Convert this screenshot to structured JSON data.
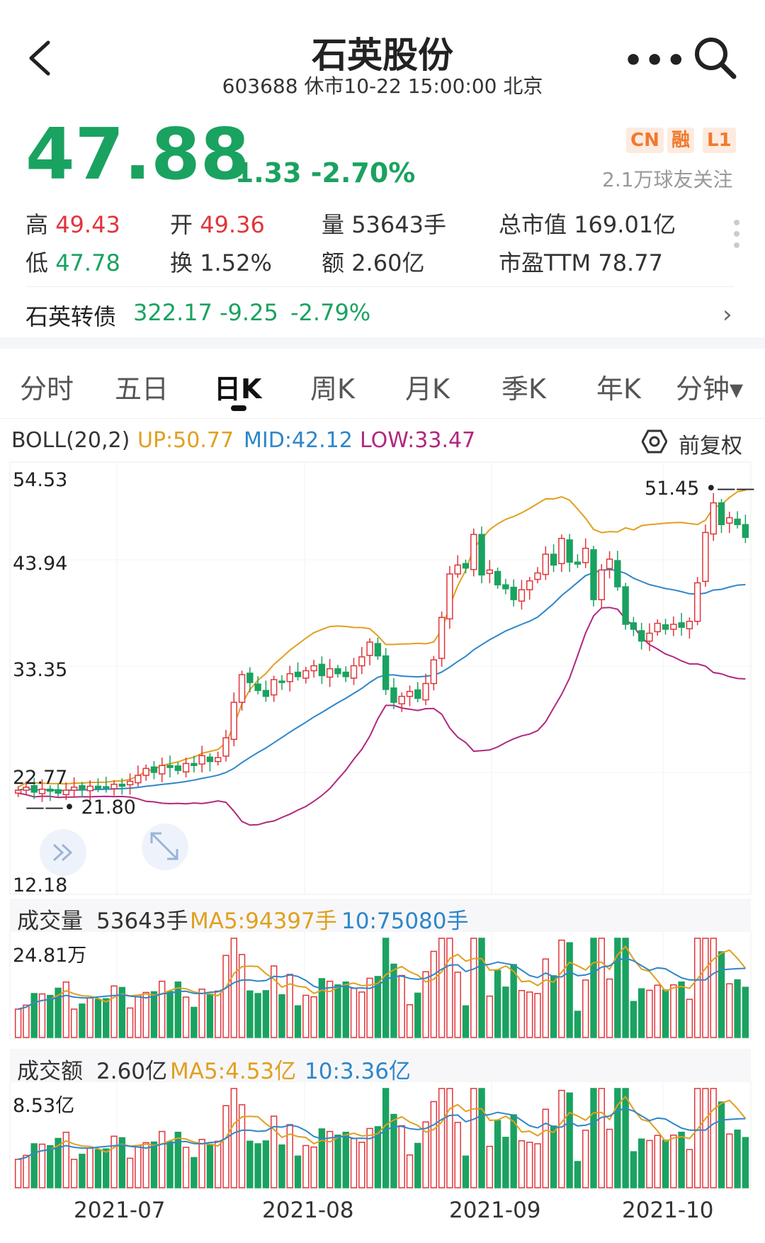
{
  "header": {
    "title": "石英股份",
    "subtitle": "603688 休市10-22 15:00:00 北京",
    "more_label": "•••"
  },
  "quote": {
    "price": "47.88",
    "change": "-1.33 -2.70%",
    "badges": [
      "CN",
      "融",
      "L1"
    ],
    "followers": "2.1万球友关注",
    "stats": {
      "high_label": "高",
      "high": "49.43",
      "low_label": "低",
      "low": "47.78",
      "open_label": "开",
      "open": "49.36",
      "turnover_label": "换",
      "turnover": "1.52%",
      "volume_label": "量",
      "volume": "53643手",
      "amount_label": "额",
      "amount": "2.60亿",
      "mktcap_label": "总市值",
      "mktcap": "169.01亿",
      "pe_label": "市盈TTM",
      "pe": "78.77"
    }
  },
  "bond": {
    "name": "石英转债",
    "price": "322.17",
    "change": "-9.25",
    "pct": "-2.79%"
  },
  "tabs": [
    "分时",
    "五日",
    "日K",
    "周K",
    "月K",
    "季K",
    "年K",
    "分钟▾"
  ],
  "boll": {
    "label": "BOLL(20,2)",
    "up": "UP:50.77",
    "mid": "MID:42.12",
    "low": "LOW:33.47",
    "restore": "前复权"
  },
  "kline_axis": [
    "54.53",
    "43.94",
    "33.35",
    "22.77",
    "12.18"
  ],
  "kline_annotations": {
    "max": "51.45",
    "min": "21.80"
  },
  "volume": {
    "label": "成交量",
    "value": "53643手",
    "ma5": "MA5:94397手",
    "ma10": "10:75080手",
    "axis_max": "24.81万"
  },
  "amount": {
    "label": "成交额",
    "value": "2.60亿",
    "ma5": "MA5:4.53亿",
    "ma10": "10:3.36亿",
    "axis_max": "8.53亿"
  },
  "x_axis": [
    "2021-07",
    "2021-08",
    "2021-09",
    "2021-10"
  ],
  "colors": {
    "up": "#e0353b",
    "down": "#1aa260",
    "boll_up": "#e0a020",
    "boll_mid": "#2f86c9",
    "boll_low": "#b0287f"
  },
  "chart_data": {
    "type": "candlestick",
    "close": [
      22.3,
      22.6,
      22.1,
      22.4,
      22.2,
      22.0,
      22.3,
      22.6,
      22.4,
      22.7,
      22.5,
      22.6,
      22.9,
      22.7,
      23.2,
      23.8,
      24.5,
      24.1,
      24.8,
      24.6,
      24.3,
      25.0,
      24.8,
      25.8,
      25.2,
      25.6,
      27.6,
      31.2,
      34.0,
      33.2,
      32.4,
      31.8,
      33.5,
      33.3,
      34.1,
      33.8,
      34.4,
      34.9,
      33.9,
      34.6,
      34.1,
      33.8,
      34.9,
      35.8,
      37.3,
      35.9,
      32.5,
      31.2,
      31.8,
      32.3,
      31.6,
      33.1,
      35.5,
      39.8,
      44.2,
      45.1,
      44.8,
      48.2,
      44.1,
      44.6,
      43.1,
      42.7,
      41.6,
      42.6,
      43.5,
      44.3,
      46.2,
      45.1,
      47.8,
      45.4,
      45.2,
      46.8,
      41.6,
      44.6,
      45.7,
      42.9,
      39.1,
      38.6,
      37.4,
      38.2,
      39.2,
      38.6,
      39.1,
      38.8,
      39.4,
      43.3,
      48.4,
      51.4,
      49.2,
      49.9,
      49.2,
      47.9
    ],
    "volume_max": 248100,
    "amount_max": 853000000
  }
}
